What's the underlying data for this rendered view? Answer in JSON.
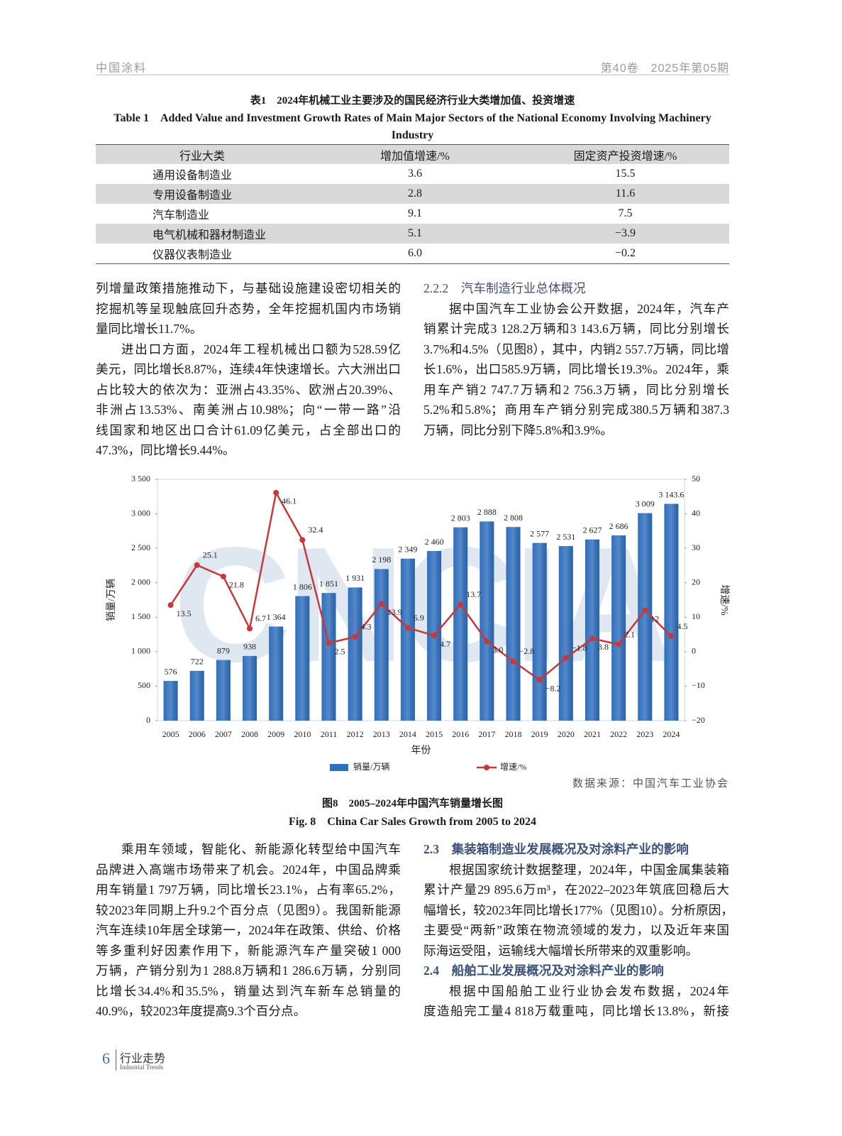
{
  "header": {
    "journal": "中国涂料",
    "issue": "第40卷　2025年第05期"
  },
  "table": {
    "caption_cn": "表1　2024年机械工业主要涉及的国民经济行业大类增加值、投资增速",
    "caption_en": "Table 1　Added Value and Investment Growth Rates of Main Major Sectors of the National Economy Involving Machinery Industry",
    "columns": [
      "行业大类",
      "增加值增速/%",
      "固定资产投资增速/%"
    ],
    "rows": [
      [
        "通用设备制造业",
        "3.6",
        "15.5"
      ],
      [
        "专用设备制造业",
        "2.8",
        "11.6"
      ],
      [
        "汽车制造业",
        "9.1",
        "7.5"
      ],
      [
        "电气机械和器材制造业",
        "5.1",
        "−3.9"
      ],
      [
        "仪器仪表制造业",
        "6.0",
        "−0.2"
      ]
    ]
  },
  "body_top": {
    "left": [
      [
        "列增量政策措施推动下，与基础设施建设密切相关的",
        "挖掘机等呈现触底回升态势，全年挖掘机国内市场销",
        "量同比增长11.7%。"
      ],
      [
        "进出口方面，2024年工程机械出口额为528.59亿",
        "美元，同比增长8.87%，连续4年快速增长。六大洲出口",
        "占比较大的依次为：亚洲占43.35%、欧洲占20.39%、",
        "非洲占13.53%、南美洲占10.98%；向“一带一路”沿",
        "线国家和地区出口合计61.09亿美元，占全部出口的",
        "47.3%，同比增长9.44%。"
      ]
    ],
    "right_heading": "2.2.2　汽车制造行业总体概况",
    "right": [
      [
        "据中国汽车工业协会公开数据，2024年，汽车产",
        "销累计完成3 128.2万辆和3 143.6万辆，同比分别增长",
        "3.7%和4.5%（见图8），其中，内销2 557.7万辆，同比增",
        "长1.6%，出口585.9万辆，同比增长19.3%。2024年，乘",
        "用车产销2 747.7万辆和2 756.3万辆，同比分别增长",
        "5.2%和5.8%；商用车产销分别完成380.5万辆和387.3",
        "万辆，同比分别下降5.8%和3.9%。"
      ]
    ]
  },
  "figure": {
    "watermark": "CNCIA",
    "source": "数据来源：中国汽车工业协会",
    "caption_cn": "图8　2005–2024年中国汽车销量增长图",
    "caption_en": "Fig. 8　China Car Sales Growth from 2005 to 2024"
  },
  "chart_data": {
    "type": "bar",
    "x_label": "年份",
    "y_label": "销量/万辆",
    "y2_label": "增速/%",
    "categories": [
      "2005",
      "2006",
      "2007",
      "2008",
      "2009",
      "2010",
      "2011",
      "2012",
      "2013",
      "2014",
      "2015",
      "2016",
      "2017",
      "2018",
      "2019",
      "2020",
      "2021",
      "2022",
      "2023",
      "2024"
    ],
    "ylim": [
      0,
      3500
    ],
    "yticks": [
      0,
      500,
      {
        "value": 1000,
        "label": "1 000"
      },
      {
        "value": 1500,
        "label": "1 500"
      },
      {
        "value": 2000,
        "label": "2 000"
      },
      {
        "value": 2500,
        "label": "2 500"
      },
      {
        "value": 3000,
        "label": "3 000"
      },
      {
        "value": 3500,
        "label": "3 500"
      }
    ],
    "y2lim": [
      -20,
      50
    ],
    "y2ticks": [
      {
        "value": -20,
        "label": "−20"
      },
      {
        "value": -10,
        "label": "−10"
      },
      0,
      10,
      20,
      30,
      40,
      50
    ],
    "grid": false,
    "legend": "bottom",
    "series": [
      {
        "name": "销量/万辆",
        "type": "bar",
        "color": "#2f6fbe",
        "values": [
          576,
          722,
          879,
          938,
          1364,
          1806,
          1851,
          1931,
          2198,
          2349,
          2460,
          2803,
          2888,
          2808,
          2577,
          2531,
          2627,
          2686,
          3009,
          3143.6
        ],
        "value_labels": [
          "576",
          "722",
          "879",
          "938",
          "1 364",
          "1 806",
          "1 851",
          "1 931",
          "2 198",
          "2 349",
          "2 460",
          "2 803",
          "2 888",
          "2 808",
          "2 577",
          "2 531",
          "2 627",
          "2 686",
          "3 009",
          "3 143.6"
        ]
      },
      {
        "name": "增速/%",
        "type": "line",
        "axis": "y2",
        "color": "#c8373a",
        "values": [
          13.5,
          25.1,
          21.8,
          6.7,
          46.1,
          32.4,
          2.5,
          4.3,
          13.9,
          6.9,
          4.7,
          13.7,
          3.0,
          -2.8,
          -8.2,
          -1.8,
          3.8,
          2.1,
          12,
          4.5
        ],
        "value_labels": [
          "13.5",
          "25.1",
          "21.8",
          "6.7",
          "46.1",
          "32.4",
          "2.5",
          "4.3",
          "13.9",
          "6.9",
          "4.7",
          "13.7",
          "3.0",
          "−2.8",
          "−8.2",
          "−1.8",
          "3.8",
          "2.1",
          "12",
          "4.5"
        ]
      }
    ]
  },
  "body_bottom": {
    "left": [
      [
        "乘用车领域，智能化、新能源化转型给中国汽车",
        "品牌进入高端市场带来了机会。2024年，中国品牌乘",
        "用车销量1 797万辆，同比增长23.1%，占有率65.2%，",
        "较2023年同期上升9.2个百分点（见图9）。我国新能源",
        "汽车连续10年居全球第一，2024年在政策、供给、价格",
        "等多重利好因素作用下，新能源汽车产量突破1 000",
        "万辆，产销分别为1 288.8万辆和1 286.6万辆，分别同",
        "比增长34.4%和35.5%，销量达到汽车新车总销量的",
        "40.9%，较2023年度提高9.3个百分点。"
      ]
    ],
    "heading_1": "2.3　集装箱制造业发展概况及对涂料产业的影响",
    "right_1": [
      [
        "根据国家统计数据整理，2024年，中国金属集装箱",
        "累计产量29 895.6万m³，在2022–2023年筑底回稳后大",
        "幅增长，较2023年同比增长177%（见图10）。分析原因，",
        "主要受“两新”政策在物流领域的发力，以及近年来国",
        "际海运受阻，运输线大幅增长所带来的双重影响。"
      ]
    ],
    "heading_2": "2.4　船舶工业发展概况及对涂料产业的影响",
    "right_2": [
      [
        "根据中国船舶工业行业协会发布数据，2024年",
        "度造船完工量4 818万载重吨，同比增长13.8%，新接"
      ]
    ]
  },
  "footer": {
    "page": "6",
    "section_cn": "行业走势",
    "section_en": "Industrial Trends"
  }
}
